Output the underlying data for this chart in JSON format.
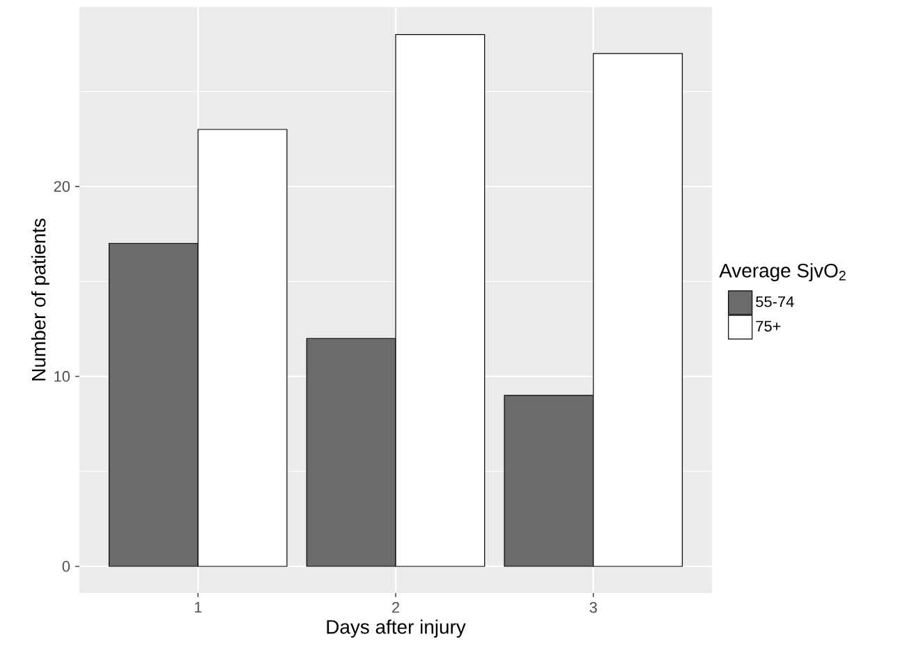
{
  "chart_data": {
    "type": "bar",
    "xlabel": "Days after injury",
    "ylabel": "Number of patients",
    "legend_title": "Average SjvO$_{2}$",
    "categories": [
      "1",
      "2",
      "3"
    ],
    "series": [
      {
        "name": "55-74",
        "color": "#6b6b6b",
        "values": [
          17,
          12,
          9
        ]
      },
      {
        "name": "75+",
        "color": "#ffffff",
        "values": [
          23,
          28,
          27
        ]
      }
    ],
    "ylim": [
      -1.4,
      29.45
    ],
    "yticks": [
      0,
      10,
      20
    ],
    "grid": true,
    "legend": "right"
  }
}
